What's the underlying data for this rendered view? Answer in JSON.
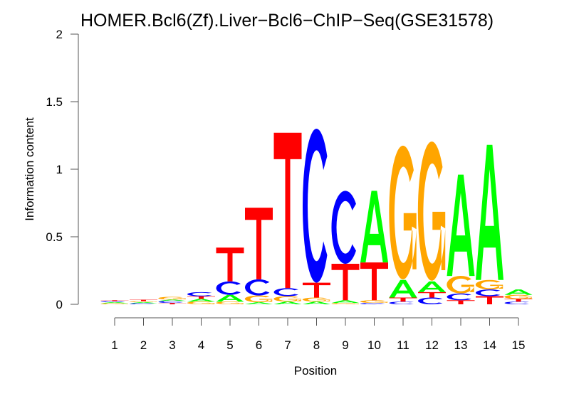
{
  "chart_data": {
    "type": "sequence-logo",
    "title": "HOMER.Bcl6(Zf).Liver−Bcl6−ChIP−Seq(GSE31578)",
    "xlabel": "Position",
    "ylabel": "Information content",
    "ylim": [
      0,
      2
    ],
    "yticks": [
      "0",
      "0.5",
      "1",
      "1.5",
      "2"
    ],
    "ytick_values": [
      0,
      0.5,
      1,
      1.5,
      2
    ],
    "x": [
      "1",
      "2",
      "3",
      "4",
      "5",
      "6",
      "7",
      "8",
      "9",
      "10",
      "11",
      "12",
      "13",
      "14",
      "15"
    ],
    "colors": {
      "A": "#00ff00",
      "C": "#0000ff",
      "G": "#ffa500",
      "T": "#ff0000"
    },
    "stacks": [
      [
        [
          "G",
          0.008
        ],
        [
          "A",
          0.008
        ],
        [
          "C",
          0.008
        ],
        [
          "T",
          0.006
        ]
      ],
      [
        [
          "C",
          0.008
        ],
        [
          "A",
          0.008
        ],
        [
          "G",
          0.008
        ],
        [
          "T",
          0.01
        ]
      ],
      [
        [
          "T",
          0.01
        ],
        [
          "C",
          0.015
        ],
        [
          "A",
          0.01
        ],
        [
          "G",
          0.02
        ]
      ],
      [
        [
          "G",
          0.02
        ],
        [
          "A",
          0.02
        ],
        [
          "T",
          0.02
        ],
        [
          "C",
          0.03
        ]
      ],
      [
        [
          "G",
          0.02
        ],
        [
          "A",
          0.05
        ],
        [
          "C",
          0.1
        ],
        [
          "T",
          0.25
        ]
      ],
      [
        [
          "A",
          0.015
        ],
        [
          "G",
          0.05
        ],
        [
          "C",
          0.12
        ],
        [
          "T",
          0.53
        ]
      ],
      [
        [
          "A",
          0.02
        ],
        [
          "G",
          0.04
        ],
        [
          "C",
          0.06
        ],
        [
          "T",
          1.15
        ]
      ],
      [
        [
          "A",
          0.02
        ],
        [
          "G",
          0.03
        ],
        [
          "T",
          0.11
        ],
        [
          "C",
          1.14
        ]
      ],
      [
        [
          "G",
          0.01
        ],
        [
          "A",
          0.02
        ],
        [
          "T",
          0.27
        ],
        [
          "C",
          0.54
        ]
      ],
      [
        [
          "C",
          0.01
        ],
        [
          "G",
          0.02
        ],
        [
          "T",
          0.28
        ],
        [
          "A",
          0.53
        ]
      ],
      [
        [
          "C",
          0.02
        ],
        [
          "T",
          0.03
        ],
        [
          "A",
          0.13
        ],
        [
          "G",
          0.99
        ]
      ],
      [
        [
          "C",
          0.05
        ],
        [
          "T",
          0.04
        ],
        [
          "A",
          0.08
        ],
        [
          "G",
          1.03
        ]
      ],
      [
        [
          "T",
          0.03
        ],
        [
          "C",
          0.05
        ],
        [
          "G",
          0.13
        ],
        [
          "A",
          0.75
        ]
      ],
      [
        [
          "T",
          0.06
        ],
        [
          "C",
          0.05
        ],
        [
          "G",
          0.07
        ],
        [
          "A",
          1.0
        ]
      ],
      [
        [
          "C",
          0.02
        ],
        [
          "T",
          0.02
        ],
        [
          "G",
          0.03
        ],
        [
          "A",
          0.04
        ]
      ]
    ]
  }
}
